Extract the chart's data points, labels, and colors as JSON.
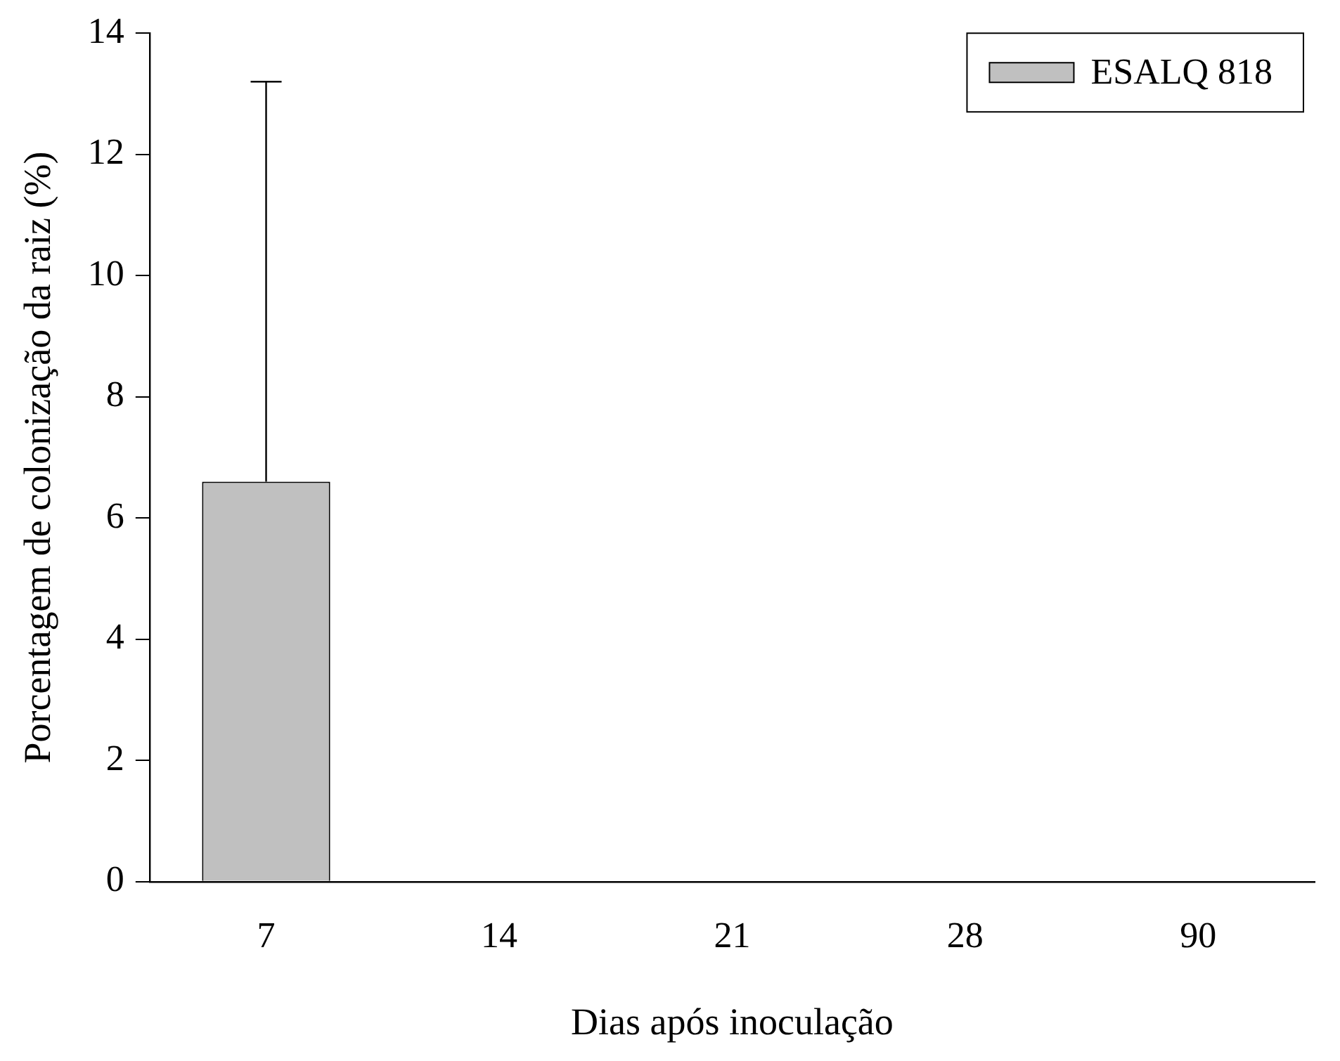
{
  "chart_data": {
    "type": "bar",
    "xlabel": "Dias após inoculação",
    "ylabel": "Porcentagem de colonização da raiz (%)",
    "categories": [
      "7",
      "14",
      "21",
      "28",
      "90"
    ],
    "series": [
      {
        "name": "ESALQ 818",
        "color": "#c0c0c0",
        "values": [
          6.6,
          0,
          0,
          0,
          0
        ],
        "errors": [
          [
            6.6,
            13.2
          ],
          null,
          null,
          null,
          null
        ]
      }
    ],
    "ylim": [
      0,
      14
    ],
    "yticks": [
      0,
      2,
      4,
      6,
      8,
      10,
      12,
      14
    ],
    "grid": false,
    "legend": "top right"
  }
}
